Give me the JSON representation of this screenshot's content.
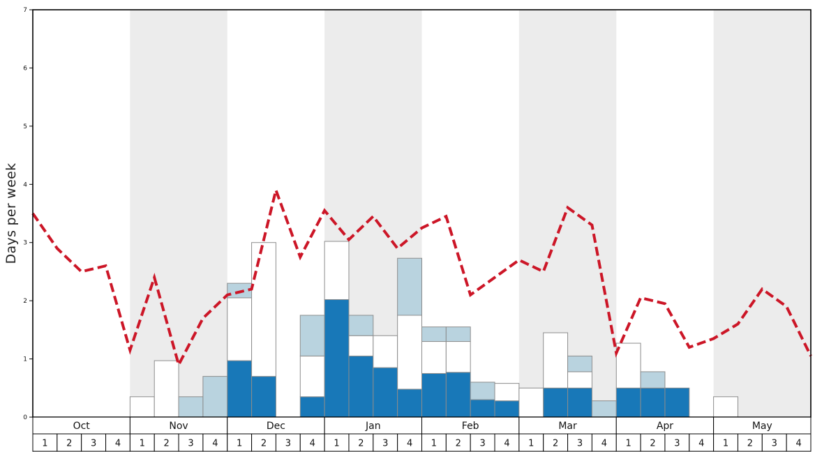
{
  "chart": {
    "colors": {
      "dark_blue": "#1878b8",
      "light_blue": "#b9d3df",
      "white_bar": "#ffffff",
      "bar_border": "#8c8c8c",
      "red_line": "#cc1627",
      "band_gray": "#ececec",
      "axis": "#000000",
      "row_bg": "#ffffff"
    }
  },
  "chart_data": {
    "type": "bar",
    "title": "",
    "xlabel": "",
    "ylabel": "Days per week",
    "ylim": [
      0,
      7
    ],
    "yticks": [
      "0",
      "1",
      "2",
      "3",
      "4",
      "5",
      "6",
      "7"
    ],
    "months": [
      "Oct",
      "Nov",
      "Dec",
      "Jan",
      "Feb",
      "Mar",
      "Apr",
      "May"
    ],
    "week_labels": [
      "1",
      "2",
      "3",
      "4"
    ],
    "shaded_band_months": [
      "Nov",
      "Jan",
      "Mar",
      "May"
    ],
    "grid": false,
    "legend": "none",
    "stack_order": "bottom-to-top",
    "series": [
      {
        "name": "dark-blue-days",
        "color": "#1878b8",
        "values": [
          0,
          0,
          0,
          0,
          0,
          0,
          0,
          0,
          0.97,
          0.7,
          0,
          0.35,
          2.02,
          1.05,
          0.85,
          0.48,
          0.75,
          0.77,
          0.3,
          0.28,
          0,
          0.5,
          0.5,
          0,
          0.5,
          0.5,
          0.5,
          0,
          0,
          0,
          0,
          0
        ]
      },
      {
        "name": "white-days",
        "color": "#ffffff",
        "values": [
          0,
          0,
          0,
          0,
          0.35,
          0.97,
          0,
          0,
          1.08,
          2.3,
          0,
          0.7,
          1.0,
          0.35,
          0.55,
          1.27,
          0.55,
          0.53,
          0,
          0.3,
          0.5,
          0.95,
          0.28,
          0,
          0.77,
          0,
          0,
          0,
          0.35,
          0,
          0,
          0
        ]
      },
      {
        "name": "light-blue-days",
        "color": "#b9d3df",
        "values": [
          0,
          0,
          0,
          0,
          0,
          0,
          0.35,
          0.7,
          0.25,
          0,
          0,
          0.7,
          0,
          0.35,
          0,
          0.98,
          0.25,
          0.25,
          0.3,
          0,
          0,
          0,
          0.27,
          0.28,
          0,
          0.28,
          0,
          0,
          0,
          0,
          0,
          0
        ]
      }
    ],
    "line_series": {
      "name": "red-dashed-line",
      "color": "#cc1627",
      "style": "dashed",
      "points_at": "week-boundaries",
      "values": [
        3.5,
        2.9,
        2.5,
        2.6,
        1.15,
        2.4,
        0.9,
        1.7,
        2.1,
        2.2,
        3.9,
        2.75,
        3.55,
        3.05,
        3.45,
        2.9,
        3.25,
        3.45,
        2.1,
        2.4,
        2.7,
        2.5,
        3.6,
        3.3,
        1.1,
        2.05,
        1.95,
        1.2,
        1.35,
        1.6,
        2.2,
        1.9,
        1.05
      ]
    }
  }
}
